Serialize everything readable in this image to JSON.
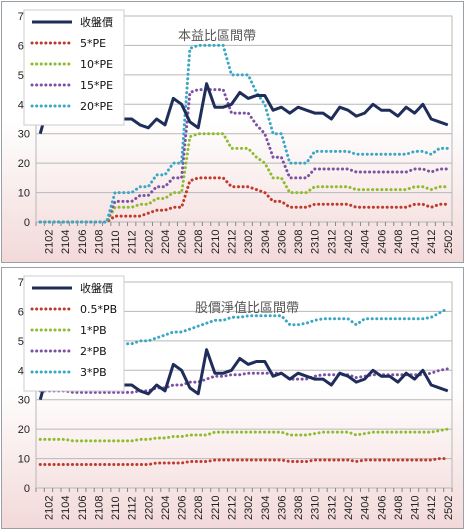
{
  "chart_data": [
    {
      "type": "line",
      "title": "本益比區間帶",
      "xlabel": "",
      "ylabel": "",
      "ylim": [
        0,
        70
      ],
      "yticks": [
        0,
        10,
        20,
        30,
        40,
        50,
        60,
        70
      ],
      "grid": true,
      "legend_position": "top-left",
      "x_tick_labels": [
        "2102",
        "2104",
        "2106",
        "2108",
        "2110",
        "2112",
        "2202",
        "2204",
        "2206",
        "2208",
        "2210",
        "2212",
        "2302",
        "2304",
        "2306",
        "2308",
        "2310",
        "2312",
        "2402",
        "2404",
        "2406",
        "2408",
        "2410",
        "2412",
        "2502"
      ],
      "series": [
        {
          "name": "收盤價",
          "style": "solid",
          "color": "#1f2d5a",
          "values": [
            30,
            40,
            39,
            34,
            41,
            39,
            41,
            41,
            39,
            37,
            35,
            35,
            33,
            32,
            35,
            33,
            42,
            40,
            34,
            32,
            47,
            39,
            39,
            40,
            44,
            42,
            43,
            43,
            38,
            39,
            37,
            39,
            38,
            37,
            37,
            35,
            39,
            38,
            36,
            37,
            40,
            38,
            38,
            36,
            39,
            37,
            40,
            35,
            34,
            33
          ]
        },
        {
          "name": "5*PE",
          "style": "dotted",
          "color": "#c0392b",
          "values": [
            0,
            0,
            0,
            0,
            0,
            0,
            0,
            0,
            0,
            2,
            2,
            2,
            2,
            3,
            4,
            4,
            5,
            5,
            14,
            15,
            15,
            15,
            15,
            12,
            12,
            12,
            11,
            10,
            7,
            7,
            5,
            5,
            5,
            6,
            6,
            6,
            6,
            6,
            5,
            5,
            5,
            5,
            5,
            5,
            5,
            6,
            6,
            5,
            6,
            6
          ]
        },
        {
          "name": "10*PE",
          "style": "dotted",
          "color": "#8fbc2f",
          "values": [
            0,
            0,
            0,
            0,
            0,
            0,
            0,
            0,
            0,
            5,
            5,
            5,
            6,
            6,
            8,
            8,
            10,
            10,
            29,
            30,
            30,
            30,
            30,
            25,
            25,
            25,
            22,
            20,
            15,
            15,
            10,
            10,
            10,
            12,
            12,
            12,
            12,
            12,
            11,
            11,
            11,
            11,
            11,
            11,
            11,
            12,
            12,
            11,
            12,
            12
          ]
        },
        {
          "name": "15*PE",
          "style": "dotted",
          "color": "#7b52a3",
          "values": [
            0,
            0,
            0,
            0,
            0,
            0,
            0,
            0,
            0,
            7,
            7,
            7,
            9,
            9,
            12,
            12,
            15,
            15,
            44,
            45,
            45,
            45,
            45,
            37,
            37,
            37,
            33,
            30,
            22,
            22,
            15,
            15,
            15,
            18,
            18,
            18,
            18,
            18,
            17,
            17,
            17,
            17,
            17,
            17,
            17,
            18,
            18,
            17,
            18,
            18
          ]
        },
        {
          "name": "20*PE",
          "style": "dotted",
          "color": "#3aa7c4",
          "values": [
            0,
            0,
            0,
            0,
            0,
            0,
            0,
            0,
            0,
            10,
            10,
            10,
            12,
            12,
            16,
            16,
            20,
            20,
            59,
            60,
            60,
            60,
            60,
            50,
            50,
            50,
            44,
            40,
            30,
            30,
            20,
            20,
            20,
            24,
            24,
            24,
            24,
            24,
            23,
            23,
            23,
            23,
            23,
            23,
            23,
            24,
            24,
            23,
            25,
            25
          ]
        }
      ]
    },
    {
      "type": "line",
      "title": "股價淨值比區間帶",
      "xlabel": "",
      "ylabel": "",
      "ylim": [
        0,
        70
      ],
      "yticks": [
        0,
        10,
        20,
        30,
        40,
        50,
        60,
        70
      ],
      "grid": true,
      "legend_position": "top-left",
      "x_tick_labels": [
        "2102",
        "2104",
        "2106",
        "2108",
        "2110",
        "2112",
        "2202",
        "2204",
        "2206",
        "2208",
        "2210",
        "2212",
        "2302",
        "2304",
        "2306",
        "2308",
        "2310",
        "2312",
        "2402",
        "2404",
        "2406",
        "2408",
        "2410",
        "2412",
        "2502"
      ],
      "series": [
        {
          "name": "收盤價",
          "style": "solid",
          "color": "#1f2d5a",
          "values": [
            30,
            40,
            39,
            34,
            41,
            39,
            41,
            41,
            39,
            37,
            35,
            35,
            33,
            32,
            35,
            33,
            42,
            40,
            34,
            32,
            47,
            39,
            39,
            40,
            44,
            42,
            43,
            43,
            38,
            39,
            37,
            39,
            38,
            37,
            37,
            35,
            39,
            38,
            36,
            37,
            40,
            38,
            38,
            36,
            39,
            37,
            40,
            35,
            34,
            33
          ]
        },
        {
          "name": "0.5*PB",
          "style": "dotted",
          "color": "#c0392b",
          "values": [
            8,
            8,
            8,
            8,
            8,
            8,
            8,
            8,
            8,
            8,
            8,
            8,
            8,
            8,
            8.5,
            8.5,
            8.5,
            8.5,
            9,
            9,
            9,
            9.5,
            9.5,
            9.5,
            9.5,
            9.5,
            9.5,
            9.5,
            9.5,
            9.5,
            9,
            9,
            9,
            9.5,
            9.5,
            9.5,
            9.5,
            9.5,
            9,
            9.5,
            9.5,
            9.5,
            9.5,
            9.5,
            9.5,
            9.5,
            9.5,
            9.5,
            10,
            10
          ]
        },
        {
          "name": "1*PB",
          "style": "dotted",
          "color": "#8fbc2f",
          "values": [
            16.5,
            16.5,
            16.5,
            16.5,
            16,
            16,
            16,
            16,
            16,
            16,
            16,
            16,
            16.5,
            16.5,
            17,
            17,
            17.5,
            17.5,
            18,
            18,
            18,
            19,
            19,
            19,
            19,
            19,
            19,
            19,
            19,
            19,
            18,
            18,
            18,
            18.5,
            19,
            19,
            19,
            19,
            18,
            18.5,
            19,
            19,
            19,
            19,
            19,
            19,
            19,
            19,
            19.5,
            20
          ]
        },
        {
          "name": "2*PB",
          "style": "dotted",
          "color": "#7b52a3",
          "values": [
            33,
            33,
            33,
            33,
            32.5,
            32.5,
            32.5,
            32.5,
            32.5,
            32.5,
            32.5,
            32.5,
            33,
            33,
            34,
            34,
            35,
            35,
            36,
            36,
            37,
            38,
            38,
            38.5,
            38.5,
            39,
            39,
            39,
            39,
            39,
            37,
            37,
            37,
            38,
            38.5,
            38.5,
            38.5,
            38.5,
            37.5,
            38,
            38.5,
            38.5,
            38.5,
            38.5,
            38.5,
            38.5,
            38.5,
            39,
            40,
            40.5
          ]
        },
        {
          "name": "3*PB",
          "style": "dotted",
          "color": "#3aa7c4",
          "values": [
            49,
            49,
            49,
            49,
            49,
            49,
            49,
            49,
            49,
            49,
            49,
            49,
            50,
            50,
            51,
            52,
            53,
            53,
            54,
            55,
            56,
            57,
            57,
            58,
            58,
            58.5,
            58.5,
            58.5,
            58.5,
            58.5,
            55.5,
            55.5,
            56,
            57,
            57.5,
            57.5,
            57.5,
            57.5,
            55.5,
            57.5,
            57.5,
            57.5,
            57.5,
            57.5,
            57.5,
            57.5,
            57.5,
            58,
            59.5,
            61
          ]
        }
      ]
    }
  ]
}
